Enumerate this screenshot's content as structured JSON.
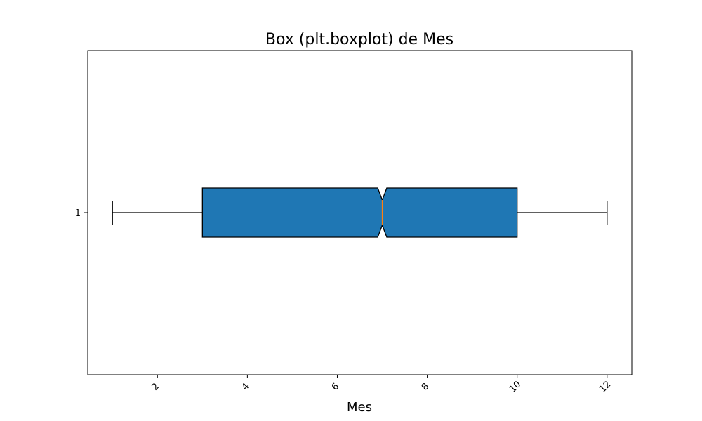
{
  "chart_data": {
    "type": "boxplot",
    "orientation": "horizontal",
    "title": "Box (plt.boxplot) de Mes",
    "xlabel": "Mes",
    "ylabel": "",
    "xlim": [
      0.45,
      12.55
    ],
    "x_ticks": [
      2,
      4,
      6,
      8,
      10,
      12
    ],
    "x_tick_labels": [
      "2",
      "4",
      "6",
      "8",
      "10",
      "12"
    ],
    "x_tick_rotation": 45,
    "categories": [
      "1"
    ],
    "notch": true,
    "grid": false,
    "boxes": [
      {
        "label": "1",
        "whisker_low": 1,
        "q1": 3,
        "median": 7,
        "q3": 10,
        "whisker_high": 12,
        "notch_low": 6.9,
        "notch_high": 7.1
      }
    ],
    "colors": {
      "box_fill": "#1f77b4",
      "median_line": "#ff7f0e",
      "edges": "#000000"
    }
  }
}
